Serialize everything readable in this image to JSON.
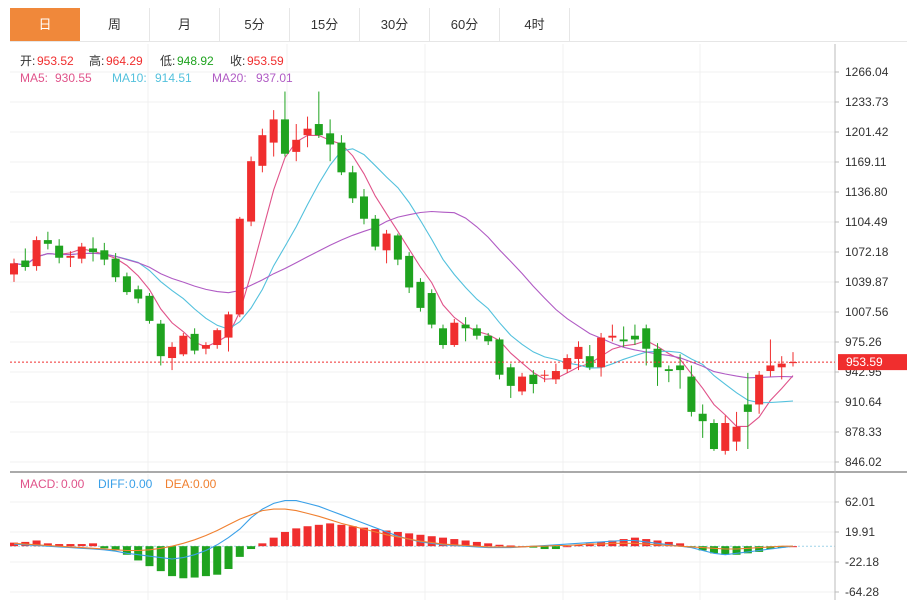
{
  "tabs": [
    "日",
    "周",
    "月",
    "5分",
    "15分",
    "30分",
    "60分",
    "4时"
  ],
  "active_tab": 0,
  "colors": {
    "up": "#f02e2e",
    "down": "#1fa31f",
    "ma5": "#e0538a",
    "ma10": "#53c1dd",
    "ma20": "#b05bc4",
    "diff": "#3aa0e8",
    "dea": "#f08030",
    "price_tag": "#f02e2e"
  },
  "ohlc_info": {
    "open_label": "开:",
    "open": "953.52",
    "high_label": "高:",
    "high": "964.29",
    "low_label": "低:",
    "low": "948.92",
    "close_label": "收:",
    "close": "953.59"
  },
  "ma_info": {
    "ma5_label": "MA5:",
    "ma5": "930.55",
    "ma10_label": "MA10:",
    "ma10": "914.51",
    "ma20_label": "MA20:",
    "ma20": "937.01"
  },
  "macd_info": {
    "macd_label": "MACD:",
    "macd": "0.00",
    "diff_label": "DIFF:",
    "diff": "0.00",
    "dea_label": "DEA:",
    "dea": "0.00"
  },
  "current_price": "953.59",
  "chart_data": {
    "type": "candlestick",
    "price_axis": {
      "ticks": [
        1266.04,
        1233.73,
        1201.42,
        1169.11,
        1136.8,
        1104.49,
        1072.18,
        1039.87,
        1007.56,
        975.26,
        942.95,
        910.64,
        878.33,
        846.02
      ],
      "tick_labels": [
        "1266.04",
        "1233.73",
        "1201.42",
        "1169.11",
        "1136.80",
        "1104.49",
        "1072.18",
        "1039.87",
        "1007.56",
        "975.26",
        "942.95",
        "910.64",
        "878.33",
        "846.02"
      ]
    },
    "macd_axis": {
      "ticks": [
        62.01,
        19.91,
        -22.18,
        -64.28
      ],
      "tick_labels": [
        "62.01",
        "19.91",
        "-22.18",
        "-64.28"
      ]
    },
    "candles": [
      [
        1048,
        1065,
        1040,
        1060
      ],
      [
        1063,
        1076,
        1052,
        1056
      ],
      [
        1057,
        1089,
        1052,
        1085
      ],
      [
        1085,
        1094,
        1075,
        1081
      ],
      [
        1079,
        1086,
        1060,
        1066
      ],
      [
        1066,
        1073,
        1056,
        1068
      ],
      [
        1065,
        1082,
        1060,
        1078
      ],
      [
        1076,
        1088,
        1062,
        1072
      ],
      [
        1074,
        1082,
        1058,
        1064
      ],
      [
        1065,
        1071,
        1040,
        1045
      ],
      [
        1046,
        1050,
        1026,
        1029
      ],
      [
        1032,
        1036,
        1017,
        1022
      ],
      [
        1025,
        1028,
        995,
        998
      ],
      [
        995,
        999,
        950,
        960
      ],
      [
        958,
        975,
        945,
        970
      ],
      [
        962,
        985,
        960,
        982
      ],
      [
        984,
        990,
        962,
        966
      ],
      [
        968,
        975,
        962,
        972
      ],
      [
        972,
        990,
        968,
        988
      ],
      [
        980,
        1008,
        965,
        1005
      ],
      [
        1005,
        1110,
        1002,
        1108
      ],
      [
        1105,
        1175,
        1100,
        1170
      ],
      [
        1165,
        1205,
        1158,
        1198
      ],
      [
        1190,
        1225,
        1175,
        1215
      ],
      [
        1215,
        1245,
        1175,
        1178
      ],
      [
        1180,
        1210,
        1170,
        1193
      ],
      [
        1198,
        1218,
        1185,
        1205
      ],
      [
        1210,
        1245,
        1195,
        1198
      ],
      [
        1200,
        1215,
        1170,
        1188
      ],
      [
        1190,
        1198,
        1155,
        1158
      ],
      [
        1158,
        1165,
        1125,
        1130
      ],
      [
        1132,
        1140,
        1102,
        1108
      ],
      [
        1108,
        1112,
        1074,
        1078
      ],
      [
        1074,
        1096,
        1060,
        1092
      ],
      [
        1090,
        1092,
        1058,
        1064
      ],
      [
        1068,
        1072,
        1028,
        1034
      ],
      [
        1040,
        1044,
        1008,
        1012
      ],
      [
        1028,
        1032,
        990,
        994
      ],
      [
        990,
        994,
        968,
        972
      ],
      [
        972,
        1000,
        970,
        996
      ],
      [
        994,
        1002,
        976,
        990
      ],
      [
        990,
        994,
        978,
        982
      ],
      [
        982,
        985,
        972,
        976
      ],
      [
        978,
        980,
        935,
        940
      ],
      [
        948,
        952,
        915,
        928
      ],
      [
        922,
        942,
        918,
        938
      ],
      [
        940,
        945,
        920,
        930
      ],
      [
        940,
        945,
        932,
        940
      ],
      [
        935,
        952,
        930,
        944
      ],
      [
        946,
        962,
        942,
        958
      ],
      [
        957,
        976,
        945,
        970
      ],
      [
        960,
        972,
        945,
        948
      ],
      [
        948,
        985,
        938,
        980
      ],
      [
        980,
        994,
        976,
        982
      ],
      [
        978,
        992,
        970,
        976
      ],
      [
        982,
        994,
        972,
        978
      ],
      [
        990,
        994,
        950,
        968
      ],
      [
        968,
        974,
        928,
        948
      ],
      [
        946,
        950,
        932,
        944
      ],
      [
        950,
        962,
        925,
        945
      ],
      [
        938,
        950,
        895,
        900
      ],
      [
        898,
        908,
        872,
        890
      ],
      [
        888,
        892,
        858,
        860
      ],
      [
        858,
        896,
        854,
        888
      ],
      [
        868,
        900,
        858,
        884
      ],
      [
        908,
        942,
        860,
        900
      ],
      [
        908,
        944,
        898,
        940
      ],
      [
        944,
        978,
        938,
        950
      ],
      [
        948,
        960,
        935,
        952
      ],
      [
        953.52,
        964.29,
        948.92,
        953.59
      ]
    ],
    "macd_bars": [
      5,
      6,
      8,
      4,
      3,
      3,
      3,
      4,
      -3,
      -6,
      -12,
      -20,
      -28,
      -35,
      -42,
      -45,
      -44,
      -42,
      -40,
      -32,
      -15,
      -4,
      4,
      12,
      20,
      25,
      28,
      30,
      32,
      30,
      28,
      26,
      24,
      22,
      20,
      18,
      16,
      14,
      12,
      10,
      8,
      6,
      4,
      2,
      1,
      0,
      -2,
      -4,
      -4,
      0,
      2,
      4,
      6,
      8,
      10,
      12,
      10,
      8,
      6,
      4,
      -2,
      -6,
      -10,
      -12,
      -12,
      -10,
      -8,
      -4,
      -2,
      0
    ],
    "diff_line": [
      3,
      2,
      1,
      0,
      -1,
      -2,
      -3,
      -4,
      -5,
      -7,
      -10,
      -12,
      -14,
      -16,
      -18,
      -16,
      -12,
      -6,
      2,
      12,
      24,
      40,
      52,
      60,
      64,
      64,
      60,
      56,
      50,
      44,
      38,
      32,
      26,
      20,
      14,
      10,
      6,
      4,
      2,
      1,
      0,
      -1,
      -2,
      -2,
      -2,
      -1,
      0,
      1,
      2,
      3,
      4,
      5,
      6,
      7,
      8,
      8,
      6,
      4,
      2,
      0,
      -2,
      -6,
      -10,
      -12,
      -10,
      -8,
      -6,
      -4,
      -2,
      0
    ],
    "dea_line": [
      4,
      3,
      2,
      1,
      0,
      -1,
      -2,
      -3,
      -4,
      -5,
      -6,
      -6,
      -5,
      -3,
      0,
      4,
      9,
      15,
      22,
      30,
      38,
      44,
      50,
      52,
      52,
      50,
      46,
      42,
      37,
      32,
      28,
      24,
      20,
      16,
      13,
      10,
      7,
      5,
      3,
      2,
      1,
      0,
      -1,
      -1,
      -1,
      -1,
      0,
      0,
      1,
      1,
      2,
      3,
      3,
      4,
      4,
      4,
      3,
      2,
      1,
      0,
      -1,
      -2,
      -3,
      -4,
      -4,
      -3,
      -2,
      -1,
      0,
      0
    ]
  }
}
